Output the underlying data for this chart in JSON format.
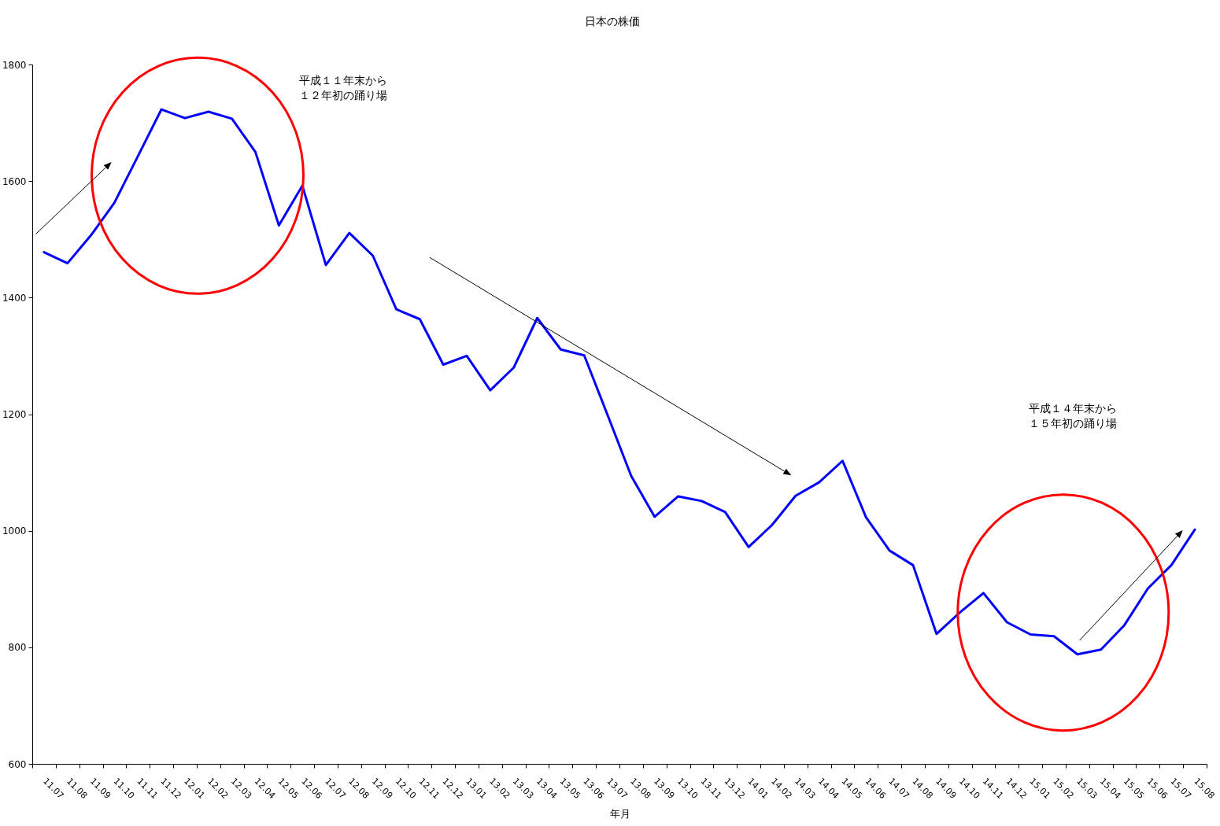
{
  "chart_data": {
    "type": "line",
    "title": "日本の株価",
    "xlabel": "年月",
    "categories": [
      "11.07",
      "11.08",
      "11.09",
      "11.10",
      "11.11",
      "11.12",
      "12.01",
      "12.02",
      "12.03",
      "12.04",
      "12.05",
      "12.06",
      "12.07",
      "12.08",
      "12.09",
      "12.10",
      "12.11",
      "12.12",
      "13.01",
      "13.02",
      "13.03",
      "13.04",
      "13.05",
      "13.06",
      "13.07",
      "13.08",
      "13.09",
      "13.10",
      "13.11",
      "13.12",
      "14.01",
      "14.02",
      "14.03",
      "14.04",
      "14.05",
      "14.06",
      "14.07",
      "14.08",
      "14.09",
      "14.10",
      "14.11",
      "14.12",
      "15.01",
      "15.02",
      "15.03",
      "15.04",
      "15.05",
      "15.06",
      "15.07",
      "15.08"
    ],
    "series": [
      {
        "color": "#0000ff",
        "values": [
          1478,
          1459,
          1507,
          1563,
          1643,
          1723,
          1708,
          1719,
          1707,
          1650,
          1524,
          1592,
          1456,
          1511,
          1472,
          1380,
          1363,
          1285,
          1300,
          1241,
          1280,
          1365,
          1311,
          1301,
          1198,
          1094,
          1024,
          1059,
          1051,
          1032,
          972,
          1010,
          1060,
          1083,
          1120,
          1023,
          966,
          941,
          823,
          860,
          893,
          843,
          822,
          819,
          788,
          796,
          838,
          901,
          941,
          1002
        ]
      }
    ],
    "ylim": [
      600,
      1800
    ],
    "yticks": [
      600,
      800,
      1000,
      1200,
      1400,
      1600,
      1800
    ],
    "annotations": [
      "平成１１年末から",
      "１２年初の踊り場",
      "平成１４年末から",
      "１５年初の踊り場"
    ]
  }
}
